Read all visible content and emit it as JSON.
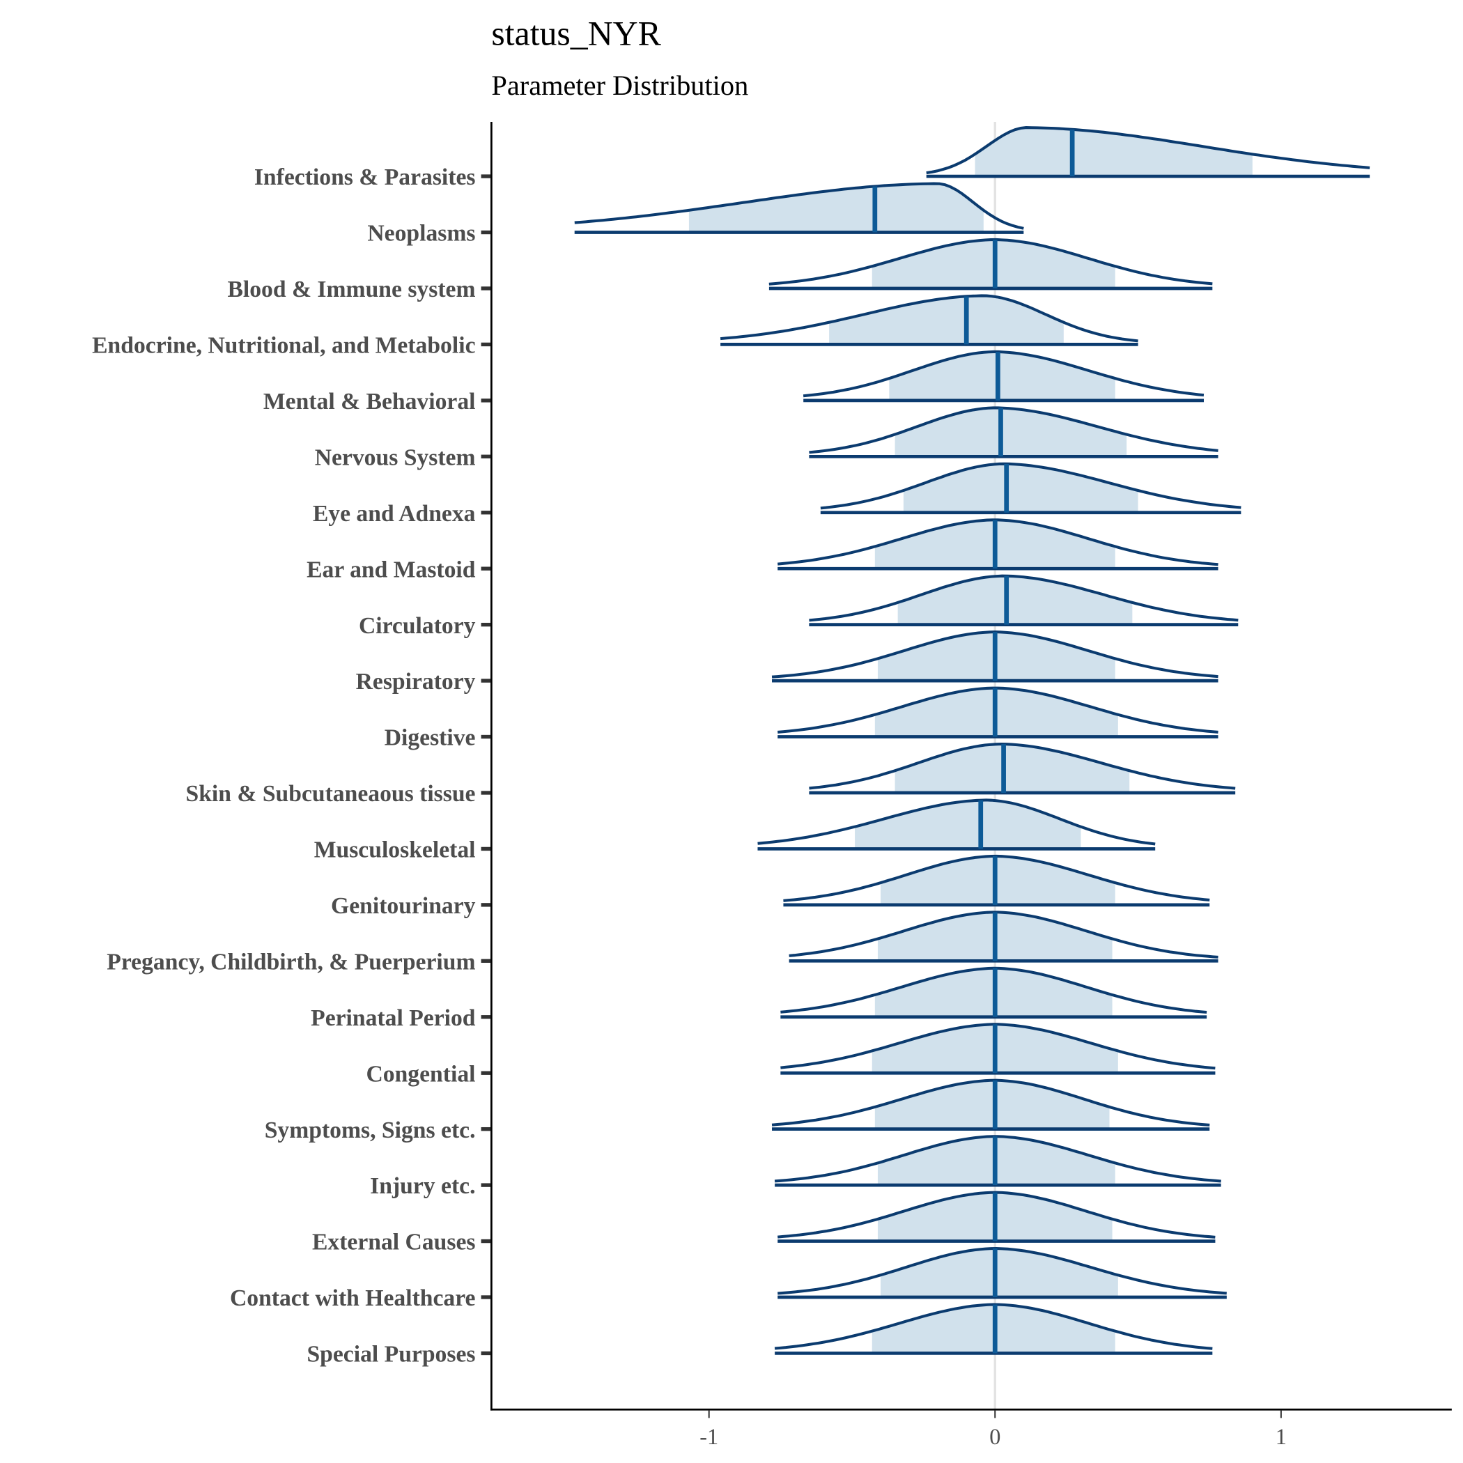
{
  "chart_data": {
    "type": "ridgeline",
    "title": "status_NYR",
    "subtitle": "Parameter Distribution",
    "xlabel": "",
    "ylabel": "",
    "xlim": [
      -1.77,
      1.6
    ],
    "x_ticks": [
      "-1",
      "0",
      "1"
    ],
    "x_tick_values": [
      -1,
      0,
      1
    ],
    "reference_line": 0,
    "grid": false,
    "colors": {
      "outline": "#0b3b6f",
      "fill": "#d1e1ec",
      "median": "#0d5a97",
      "reference": "#e3e3e3"
    },
    "series": [
      {
        "name": "Infections & Parasites",
        "min": -0.24,
        "max": 1.31,
        "interval": [
          -0.07,
          0.9
        ],
        "median": 0.27,
        "mode": 0.11
      },
      {
        "name": "Neoplasms",
        "min": -1.47,
        "max": 0.1,
        "interval": [
          -1.07,
          -0.04
        ],
        "median": -0.42,
        "mode": -0.2
      },
      {
        "name": "Blood & Immune system",
        "min": -0.79,
        "max": 0.76,
        "interval": [
          -0.43,
          0.42
        ],
        "median": 0.0,
        "mode": 0.0
      },
      {
        "name": "Endocrine, Nutritional, and Metabolic",
        "min": -0.96,
        "max": 0.5,
        "interval": [
          -0.58,
          0.24
        ],
        "median": -0.1,
        "mode": -0.04
      },
      {
        "name": "Mental & Behavioral",
        "min": -0.67,
        "max": 0.73,
        "interval": [
          -0.37,
          0.42
        ],
        "median": 0.01,
        "mode": 0.0
      },
      {
        "name": "Nervous System",
        "min": -0.65,
        "max": 0.78,
        "interval": [
          -0.35,
          0.46
        ],
        "median": 0.02,
        "mode": 0.0
      },
      {
        "name": "Eye and Adnexa",
        "min": -0.61,
        "max": 0.86,
        "interval": [
          -0.32,
          0.5
        ],
        "median": 0.04,
        "mode": 0.03
      },
      {
        "name": "Ear and Mastoid",
        "min": -0.76,
        "max": 0.78,
        "interval": [
          -0.42,
          0.42
        ],
        "median": 0.0,
        "mode": 0.0
      },
      {
        "name": "Circulatory",
        "min": -0.65,
        "max": 0.85,
        "interval": [
          -0.34,
          0.48
        ],
        "median": 0.04,
        "mode": 0.03
      },
      {
        "name": "Respiratory",
        "min": -0.78,
        "max": 0.78,
        "interval": [
          -0.41,
          0.42
        ],
        "median": 0.0,
        "mode": 0.0
      },
      {
        "name": "Digestive",
        "min": -0.76,
        "max": 0.78,
        "interval": [
          -0.42,
          0.43
        ],
        "median": 0.0,
        "mode": 0.0
      },
      {
        "name": "Skin & Subcutaneaous tissue",
        "min": -0.65,
        "max": 0.84,
        "interval": [
          -0.35,
          0.47
        ],
        "median": 0.03,
        "mode": 0.02
      },
      {
        "name": "Musculoskeletal",
        "min": -0.83,
        "max": 0.56,
        "interval": [
          -0.49,
          0.3
        ],
        "median": -0.05,
        "mode": -0.03
      },
      {
        "name": "Genitourinary",
        "min": -0.74,
        "max": 0.75,
        "interval": [
          -0.4,
          0.42
        ],
        "median": 0.0,
        "mode": 0.0
      },
      {
        "name": "Pregancy, Childbirth, & Puerperium",
        "min": -0.72,
        "max": 0.78,
        "interval": [
          -0.41,
          0.41
        ],
        "median": 0.0,
        "mode": 0.0
      },
      {
        "name": "Perinatal Period",
        "min": -0.75,
        "max": 0.74,
        "interval": [
          -0.42,
          0.41
        ],
        "median": 0.0,
        "mode": 0.0
      },
      {
        "name": "Congential",
        "min": -0.75,
        "max": 0.77,
        "interval": [
          -0.43,
          0.43
        ],
        "median": 0.0,
        "mode": 0.0
      },
      {
        "name": "Symptoms, Signs etc.",
        "min": -0.78,
        "max": 0.75,
        "interval": [
          -0.42,
          0.4
        ],
        "median": 0.0,
        "mode": 0.0
      },
      {
        "name": "Injury etc.",
        "min": -0.77,
        "max": 0.79,
        "interval": [
          -0.41,
          0.42
        ],
        "median": 0.0,
        "mode": 0.0
      },
      {
        "name": "External Causes",
        "min": -0.76,
        "max": 0.77,
        "interval": [
          -0.41,
          0.41
        ],
        "median": 0.0,
        "mode": 0.0
      },
      {
        "name": "Contact with Healthcare",
        "min": -0.76,
        "max": 0.81,
        "interval": [
          -0.4,
          0.43
        ],
        "median": 0.0,
        "mode": 0.0
      },
      {
        "name": "Special Purposes",
        "min": -0.77,
        "max": 0.76,
        "interval": [
          -0.43,
          0.42
        ],
        "median": 0.0,
        "mode": 0.0
      }
    ]
  }
}
